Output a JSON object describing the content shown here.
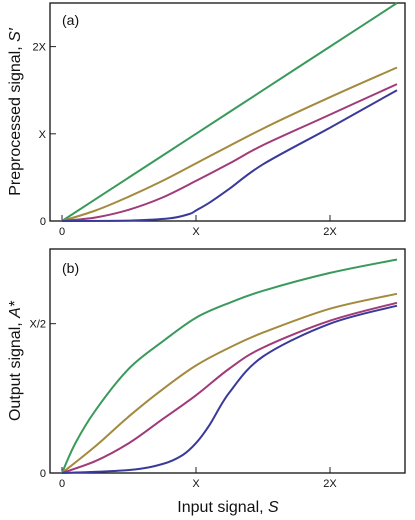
{
  "chart_data": [
    {
      "type": "line",
      "panel_label": "(a)",
      "xlabel_prefix": "",
      "xlabel_var": "",
      "ylabel_prefix": "Preprocessed signal, ",
      "ylabel_var": "S′",
      "xlim": [
        0,
        2.5
      ],
      "ylim": [
        0,
        2.5
      ],
      "xticks": [
        {
          "v": 0,
          "label": "0"
        },
        {
          "v": 1,
          "label": "X"
        },
        {
          "v": 2,
          "label": "2X"
        }
      ],
      "yticks": [
        {
          "v": 0,
          "label": "0"
        },
        {
          "v": 1,
          "label": "X"
        },
        {
          "v": 2,
          "label": "2X"
        }
      ],
      "series": [
        {
          "color": "#3a9a5c",
          "x": [
            0,
            0.5,
            1.0,
            1.5,
            2.0,
            2.5
          ],
          "y": [
            0,
            0.5,
            1.0,
            1.5,
            2.0,
            2.5
          ]
        },
        {
          "color": "#a38a3e",
          "x": [
            0,
            0.25,
            0.5,
            0.75,
            1.0,
            1.5,
            2.0,
            2.5
          ],
          "y": [
            0,
            0.12,
            0.28,
            0.46,
            0.66,
            1.06,
            1.42,
            1.76
          ]
        },
        {
          "color": "#a03a7a",
          "x": [
            0,
            0.25,
            0.5,
            0.75,
            1.0,
            1.25,
            1.5,
            2.0,
            2.5
          ],
          "y": [
            0,
            0.04,
            0.13,
            0.27,
            0.46,
            0.66,
            0.87,
            1.22,
            1.57
          ]
        },
        {
          "color": "#3a3a9a",
          "x": [
            0,
            0.5,
            0.8,
            0.95,
            1.0,
            1.1,
            1.25,
            1.5,
            2.0,
            2.5
          ],
          "y": [
            0,
            0.005,
            0.03,
            0.08,
            0.12,
            0.21,
            0.37,
            0.65,
            1.07,
            1.5
          ]
        }
      ]
    },
    {
      "type": "line",
      "panel_label": "(b)",
      "xlabel_prefix": "Input signal, ",
      "xlabel_var": "S",
      "ylabel_prefix": "Output signal, ",
      "ylabel_var": "A*",
      "xlim": [
        0,
        2.5
      ],
      "ylim": [
        0,
        0.75
      ],
      "xticks": [
        {
          "v": 0,
          "label": "0"
        },
        {
          "v": 1,
          "label": "X"
        },
        {
          "v": 2,
          "label": "2X"
        }
      ],
      "yticks": [
        {
          "v": 0,
          "label": "0"
        },
        {
          "v": 0.5,
          "label": "X/2"
        }
      ],
      "series": [
        {
          "color": "#3a9a5c",
          "x": [
            0,
            0.1,
            0.25,
            0.5,
            0.75,
            1.0,
            1.25,
            1.5,
            2.0,
            2.5
          ],
          "y": [
            0,
            0.1,
            0.21,
            0.35,
            0.44,
            0.52,
            0.57,
            0.61,
            0.67,
            0.715
          ]
        },
        {
          "color": "#a38a3e",
          "x": [
            0,
            0.25,
            0.5,
            0.75,
            1.0,
            1.25,
            1.5,
            2.0,
            2.5
          ],
          "y": [
            0,
            0.09,
            0.19,
            0.28,
            0.36,
            0.42,
            0.47,
            0.55,
            0.6
          ]
        },
        {
          "color": "#a03a7a",
          "x": [
            0,
            0.25,
            0.5,
            0.75,
            1.0,
            1.25,
            1.5,
            2.0,
            2.5
          ],
          "y": [
            0,
            0.04,
            0.1,
            0.18,
            0.26,
            0.35,
            0.42,
            0.51,
            0.57
          ]
        },
        {
          "color": "#3a3a9a",
          "x": [
            0,
            0.5,
            0.75,
            0.9,
            1.0,
            1.1,
            1.25,
            1.5,
            2.0,
            2.5
          ],
          "y": [
            0,
            0.01,
            0.03,
            0.06,
            0.1,
            0.16,
            0.27,
            0.39,
            0.5,
            0.56
          ]
        }
      ]
    }
  ]
}
